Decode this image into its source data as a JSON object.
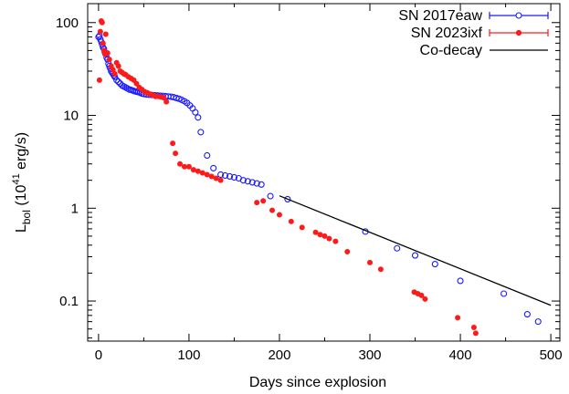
{
  "chart_data": {
    "type": "scatter",
    "xlabel": "Days since explosion",
    "ylabel_main": "L",
    "ylabel_sub": "bol",
    "ylabel_unit_pre": " (10",
    "ylabel_unit_exp": "41",
    "ylabel_unit_post": " erg/s)",
    "y_scale": "log",
    "xlim": [
      -12,
      510
    ],
    "ylim": [
      0.037,
      160
    ],
    "x_ticks": [
      0,
      100,
      200,
      300,
      400,
      500
    ],
    "x_tick_labels": [
      "0",
      "100",
      "200",
      "300",
      "400",
      "500"
    ],
    "y_ticks": [
      0.1,
      1,
      10,
      100
    ],
    "y_tick_labels": [
      "0.1",
      "1",
      "10",
      "100"
    ],
    "legend_position": "top-right",
    "series": [
      {
        "name": "SN 2017eaw",
        "color": "#1a1aff",
        "marker": "open-circle",
        "x": [
          0,
          1,
          2,
          3,
          4,
          5,
          6,
          7,
          8,
          9,
          10,
          11,
          12,
          13,
          14,
          15,
          16,
          17,
          18,
          20,
          22,
          24,
          26,
          28,
          30,
          32,
          34,
          36,
          38,
          40,
          42,
          44,
          46,
          48,
          50,
          53,
          56,
          59,
          62,
          65,
          68,
          71,
          74,
          77,
          80,
          83,
          86,
          89,
          92,
          95,
          98,
          101,
          104,
          107,
          110,
          113,
          120,
          127,
          135,
          140,
          145,
          150,
          155,
          160,
          165,
          170,
          175,
          180,
          190,
          209,
          295,
          330,
          350,
          372,
          400,
          448,
          474,
          486
        ],
        "y": [
          70,
          72,
          66,
          62,
          58,
          54,
          52,
          48,
          46,
          42,
          40,
          36,
          34,
          32,
          30,
          29,
          28,
          27,
          26,
          24,
          23,
          22,
          21,
          20.5,
          20,
          19.5,
          19,
          18.8,
          18.5,
          18.2,
          18,
          17.8,
          17.5,
          17.2,
          17,
          16.8,
          16.7,
          16.6,
          16.5,
          16.4,
          16.3,
          16.2,
          16.1,
          16,
          15.9,
          15.7,
          15.4,
          15.1,
          14.7,
          14.2,
          13.6,
          12.8,
          11.9,
          10.8,
          9.5,
          6.6,
          3.7,
          2.7,
          2.3,
          2.25,
          2.2,
          2.15,
          2.1,
          2.0,
          1.95,
          1.9,
          1.85,
          1.8,
          1.35,
          1.25,
          0.56,
          0.37,
          0.31,
          0.25,
          0.165,
          0.12,
          0.072,
          0.06
        ]
      },
      {
        "name": "SN 2023ixf",
        "color": "#ff1a1a",
        "marker": "filled-circle",
        "x": [
          1,
          2,
          3,
          4,
          5,
          6,
          7,
          8,
          10,
          12,
          14,
          16,
          18,
          20,
          22,
          24,
          26,
          28,
          30,
          33,
          36,
          39,
          42,
          45,
          48,
          51,
          54,
          57,
          60,
          63,
          66,
          69,
          72,
          75,
          82,
          85,
          90,
          95,
          100,
          105,
          110,
          115,
          120,
          125,
          130,
          135,
          175,
          182,
          192,
          200,
          213,
          225,
          240,
          245,
          250,
          255,
          262,
          275,
          300,
          312,
          349,
          353,
          357,
          361,
          397,
          415,
          417
        ],
        "y": [
          24,
          80,
          104,
          100,
          60,
          50,
          46,
          75,
          47,
          40,
          34,
          31,
          28,
          37,
          34,
          30,
          29,
          28,
          27.5,
          26,
          25,
          24,
          22,
          20,
          19,
          18,
          17.5,
          17,
          16.5,
          16,
          16,
          15.8,
          15.5,
          14,
          5,
          3.9,
          3,
          2.8,
          2.8,
          2.6,
          2.5,
          2.4,
          2.3,
          2.2,
          2.1,
          2.0,
          1.15,
          1.2,
          0.95,
          0.85,
          0.72,
          0.62,
          0.55,
          0.52,
          0.5,
          0.47,
          0.44,
          0.34,
          0.26,
          0.22,
          0.125,
          0.12,
          0.115,
          0.105,
          0.066,
          0.052,
          0.045
        ]
      },
      {
        "name": "Co-decay",
        "color": "#000000",
        "marker": "line",
        "x": [
          200,
          500
        ],
        "y": [
          1.36,
          0.09
        ]
      }
    ]
  }
}
